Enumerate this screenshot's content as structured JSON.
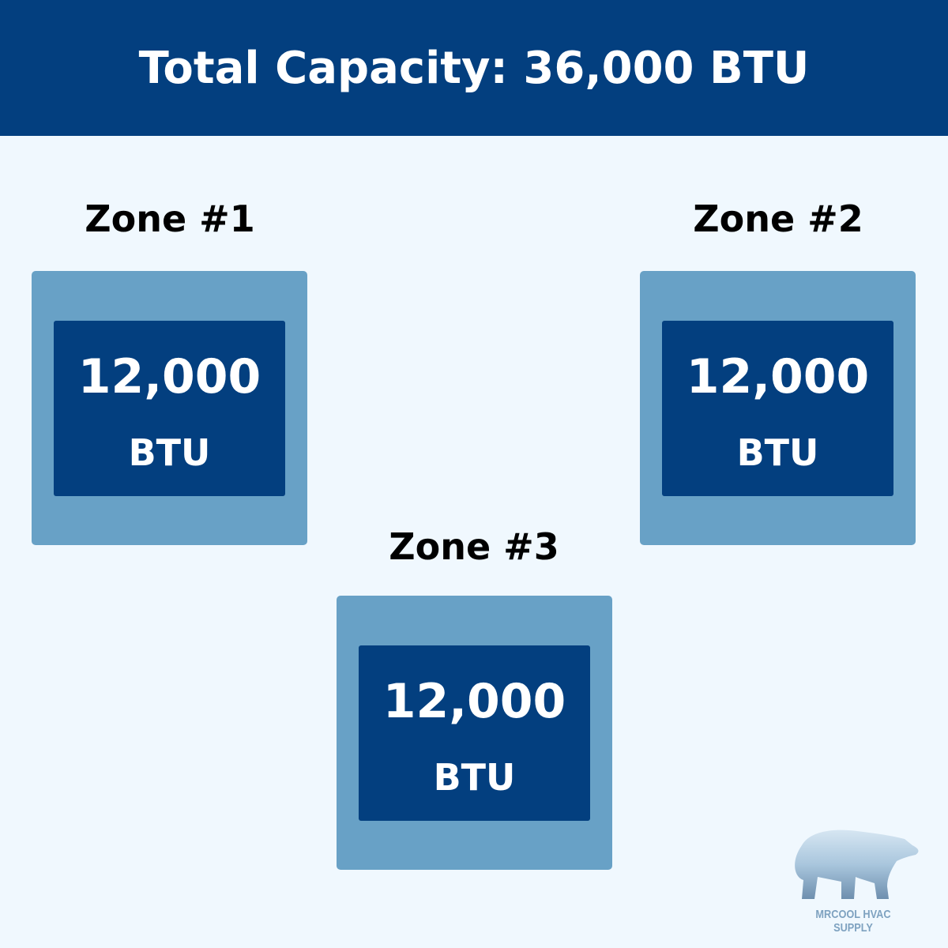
{
  "header": {
    "title": "Total Capacity: 36,000 BTU"
  },
  "zones": [
    {
      "label": "Zone #1",
      "value": "12,000",
      "unit": "BTU"
    },
    {
      "label": "Zone #2",
      "value": "12,000",
      "unit": "BTU"
    },
    {
      "label": "Zone #3",
      "value": "12,000",
      "unit": "BTU"
    }
  ],
  "logo": {
    "text": "MRCOOL HVAC SUPPLY"
  },
  "colors": {
    "header": "#033f7f",
    "background": "#f0f8fe",
    "zone_outer": "#68a1c6",
    "zone_inner": "#033f7f"
  }
}
